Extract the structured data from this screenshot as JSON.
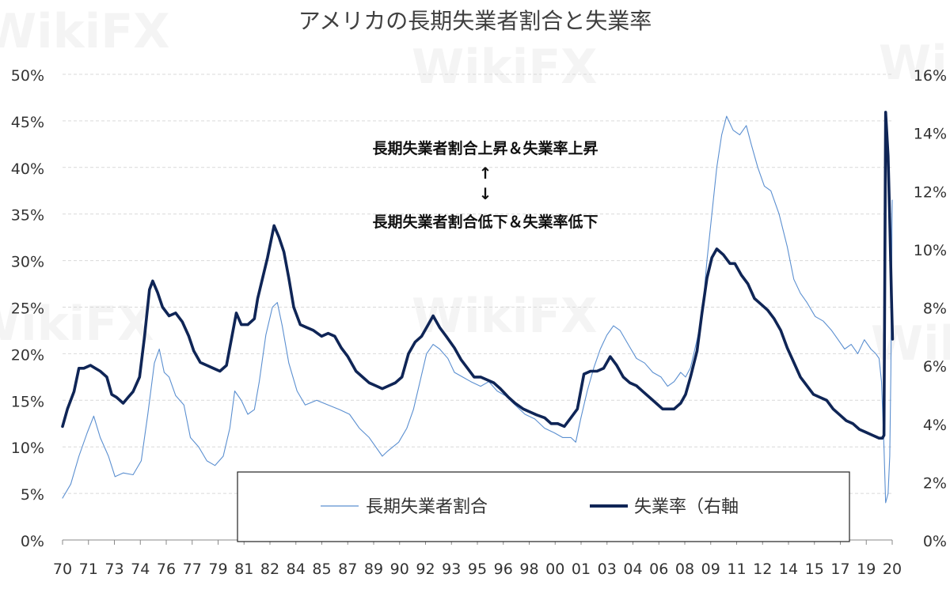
{
  "chart_data": {
    "type": "line",
    "title": "アメリカの長期失業者割合と失業率",
    "annotations": {
      "up": "長期失業者割合上昇＆失業率上昇",
      "arrow_up": "↑",
      "arrow_down": "↓",
      "down": "長期失業者割合低下＆失業率低下"
    },
    "x_tick_labels": [
      "70",
      "71",
      "73",
      "74",
      "76",
      "77",
      "79",
      "81",
      "82",
      "84",
      "85",
      "87",
      "89",
      "90",
      "92",
      "93",
      "95",
      "96",
      "98",
      "00",
      "01",
      "03",
      "04",
      "06",
      "08",
      "09",
      "11",
      "12",
      "14",
      "15",
      "17",
      "19",
      "20"
    ],
    "xlim": [
      1970,
      2020.6
    ],
    "y_left": {
      "ylim": [
        0,
        50
      ],
      "tick_labels": [
        "0%",
        "5%",
        "10%",
        "15%",
        "20%",
        "25%",
        "30%",
        "35%",
        "40%",
        "45%",
        "50%"
      ]
    },
    "y_right": {
      "ylim": [
        0,
        16
      ],
      "tick_labels": [
        "0%",
        "2%",
        "4%",
        "6%",
        "8%",
        "10%",
        "12%",
        "14%",
        "16%"
      ]
    },
    "grid": true,
    "legend_placement": "bottom-center",
    "series": [
      {
        "name": "長期失業者割合",
        "axis": "left",
        "color": "#5b8fd0",
        "style": "thin",
        "points": [
          [
            1970.0,
            4.5
          ],
          [
            1970.5,
            6.0
          ],
          [
            1971.0,
            9.0
          ],
          [
            1971.5,
            11.5
          ],
          [
            1971.9,
            13.3
          ],
          [
            1972.3,
            11.0
          ],
          [
            1972.8,
            9.0
          ],
          [
            1973.2,
            6.8
          ],
          [
            1973.7,
            7.2
          ],
          [
            1974.3,
            7.0
          ],
          [
            1974.8,
            8.5
          ],
          [
            1975.2,
            13.5
          ],
          [
            1975.6,
            19.0
          ],
          [
            1975.9,
            20.5
          ],
          [
            1976.2,
            18.0
          ],
          [
            1976.5,
            17.5
          ],
          [
            1976.9,
            15.5
          ],
          [
            1977.4,
            14.5
          ],
          [
            1977.8,
            11.0
          ],
          [
            1978.3,
            10.0
          ],
          [
            1978.8,
            8.5
          ],
          [
            1979.3,
            8.0
          ],
          [
            1979.8,
            9.0
          ],
          [
            1980.2,
            12.0
          ],
          [
            1980.5,
            16.0
          ],
          [
            1980.9,
            15.0
          ],
          [
            1981.3,
            13.5
          ],
          [
            1981.7,
            14.0
          ],
          [
            1982.0,
            17.0
          ],
          [
            1982.4,
            22.0
          ],
          [
            1982.8,
            25.0
          ],
          [
            1983.1,
            25.5
          ],
          [
            1983.4,
            23.0
          ],
          [
            1983.8,
            19.0
          ],
          [
            1984.3,
            16.0
          ],
          [
            1984.8,
            14.5
          ],
          [
            1985.5,
            15.0
          ],
          [
            1986.2,
            14.5
          ],
          [
            1986.9,
            14.0
          ],
          [
            1987.5,
            13.5
          ],
          [
            1988.1,
            12.0
          ],
          [
            1988.7,
            11.0
          ],
          [
            1989.1,
            10.0
          ],
          [
            1989.5,
            9.0
          ],
          [
            1989.8,
            9.5
          ],
          [
            1990.5,
            10.5
          ],
          [
            1991.0,
            12.0
          ],
          [
            1991.4,
            14.0
          ],
          [
            1991.8,
            17.0
          ],
          [
            1992.2,
            20.0
          ],
          [
            1992.6,
            21.0
          ],
          [
            1993.0,
            20.5
          ],
          [
            1993.5,
            19.5
          ],
          [
            1993.9,
            18.0
          ],
          [
            1994.4,
            17.5
          ],
          [
            1994.9,
            17.0
          ],
          [
            1995.5,
            16.5
          ],
          [
            1996.0,
            17.0
          ],
          [
            1996.5,
            16.0
          ],
          [
            1997.0,
            15.5
          ],
          [
            1997.6,
            14.5
          ],
          [
            1998.2,
            13.5
          ],
          [
            1998.8,
            13.0
          ],
          [
            1999.4,
            12.0
          ],
          [
            2000.0,
            11.5
          ],
          [
            2000.5,
            11.0
          ],
          [
            2001.0,
            11.0
          ],
          [
            2001.3,
            10.5
          ],
          [
            2001.6,
            13.0
          ],
          [
            2002.0,
            16.0
          ],
          [
            2002.4,
            18.5
          ],
          [
            2002.8,
            20.5
          ],
          [
            2003.2,
            22.0
          ],
          [
            2003.6,
            23.0
          ],
          [
            2004.0,
            22.5
          ],
          [
            2004.5,
            21.0
          ],
          [
            2005.0,
            19.5
          ],
          [
            2005.5,
            19.0
          ],
          [
            2006.0,
            18.0
          ],
          [
            2006.5,
            17.5
          ],
          [
            2006.9,
            16.5
          ],
          [
            2007.3,
            17.0
          ],
          [
            2007.7,
            18.0
          ],
          [
            2008.0,
            17.5
          ],
          [
            2008.3,
            18.5
          ],
          [
            2008.7,
            21.5
          ],
          [
            2009.0,
            24.0
          ],
          [
            2009.3,
            30.0
          ],
          [
            2009.6,
            35.0
          ],
          [
            2009.9,
            40.0
          ],
          [
            2010.2,
            43.5
          ],
          [
            2010.5,
            45.5
          ],
          [
            2010.9,
            44.0
          ],
          [
            2011.3,
            43.5
          ],
          [
            2011.7,
            44.5
          ],
          [
            2012.0,
            42.5
          ],
          [
            2012.4,
            40.0
          ],
          [
            2012.8,
            38.0
          ],
          [
            2013.2,
            37.5
          ],
          [
            2013.7,
            35.0
          ],
          [
            2014.2,
            31.5
          ],
          [
            2014.6,
            28.0
          ],
          [
            2015.0,
            26.5
          ],
          [
            2015.4,
            25.5
          ],
          [
            2015.9,
            24.0
          ],
          [
            2016.4,
            23.5
          ],
          [
            2016.9,
            22.5
          ],
          [
            2017.3,
            21.5
          ],
          [
            2017.7,
            20.5
          ],
          [
            2018.1,
            21.0
          ],
          [
            2018.5,
            20.0
          ],
          [
            2018.9,
            21.5
          ],
          [
            2019.3,
            20.5
          ],
          [
            2019.6,
            20.0
          ],
          [
            2019.8,
            19.5
          ],
          [
            2019.95,
            17.0
          ],
          [
            2020.1,
            10.0
          ],
          [
            2020.2,
            4.0
          ],
          [
            2020.35,
            5.0
          ],
          [
            2020.45,
            9.0
          ],
          [
            2020.52,
            18.0
          ],
          [
            2020.6,
            36.5
          ]
        ]
      },
      {
        "name": "失業率（右軸",
        "axis": "right",
        "color": "#0f2556",
        "style": "thick",
        "points": [
          [
            1970.0,
            3.9
          ],
          [
            1970.3,
            4.5
          ],
          [
            1970.7,
            5.1
          ],
          [
            1971.0,
            5.9
          ],
          [
            1971.3,
            5.9
          ],
          [
            1971.7,
            6.0
          ],
          [
            1972.0,
            5.9
          ],
          [
            1972.3,
            5.8
          ],
          [
            1972.7,
            5.6
          ],
          [
            1973.0,
            5.0
          ],
          [
            1973.3,
            4.9
          ],
          [
            1973.7,
            4.7
          ],
          [
            1974.0,
            4.9
          ],
          [
            1974.3,
            5.1
          ],
          [
            1974.7,
            5.6
          ],
          [
            1975.0,
            7.0
          ],
          [
            1975.3,
            8.6
          ],
          [
            1975.5,
            8.9
          ],
          [
            1975.8,
            8.5
          ],
          [
            1976.1,
            8.0
          ],
          [
            1976.5,
            7.7
          ],
          [
            1976.9,
            7.8
          ],
          [
            1977.3,
            7.5
          ],
          [
            1977.7,
            7.0
          ],
          [
            1978.0,
            6.5
          ],
          [
            1978.4,
            6.1
          ],
          [
            1978.8,
            6.0
          ],
          [
            1979.2,
            5.9
          ],
          [
            1979.6,
            5.8
          ],
          [
            1980.0,
            6.0
          ],
          [
            1980.3,
            6.9
          ],
          [
            1980.6,
            7.8
          ],
          [
            1980.9,
            7.4
          ],
          [
            1981.3,
            7.4
          ],
          [
            1981.7,
            7.6
          ],
          [
            1981.9,
            8.3
          ],
          [
            1982.2,
            9.0
          ],
          [
            1982.5,
            9.7
          ],
          [
            1982.9,
            10.8
          ],
          [
            1983.2,
            10.4
          ],
          [
            1983.5,
            9.9
          ],
          [
            1983.8,
            9.0
          ],
          [
            1984.1,
            8.0
          ],
          [
            1984.5,
            7.4
          ],
          [
            1984.9,
            7.3
          ],
          [
            1985.3,
            7.2
          ],
          [
            1985.8,
            7.0
          ],
          [
            1986.2,
            7.1
          ],
          [
            1986.6,
            7.0
          ],
          [
            1987.0,
            6.6
          ],
          [
            1987.4,
            6.3
          ],
          [
            1987.9,
            5.8
          ],
          [
            1988.3,
            5.6
          ],
          [
            1988.7,
            5.4
          ],
          [
            1989.1,
            5.3
          ],
          [
            1989.5,
            5.2
          ],
          [
            1989.9,
            5.3
          ],
          [
            1990.3,
            5.4
          ],
          [
            1990.7,
            5.6
          ],
          [
            1991.1,
            6.4
          ],
          [
            1991.5,
            6.8
          ],
          [
            1991.9,
            7.0
          ],
          [
            1992.3,
            7.4
          ],
          [
            1992.6,
            7.7
          ],
          [
            1993.0,
            7.3
          ],
          [
            1993.4,
            7.0
          ],
          [
            1993.9,
            6.6
          ],
          [
            1994.3,
            6.2
          ],
          [
            1994.7,
            5.9
          ],
          [
            1995.1,
            5.6
          ],
          [
            1995.5,
            5.6
          ],
          [
            1995.9,
            5.5
          ],
          [
            1996.3,
            5.4
          ],
          [
            1996.7,
            5.2
          ],
          [
            1997.2,
            4.9
          ],
          [
            1997.6,
            4.7
          ],
          [
            1998.1,
            4.5
          ],
          [
            1998.5,
            4.4
          ],
          [
            1998.9,
            4.3
          ],
          [
            1999.4,
            4.2
          ],
          [
            1999.8,
            4.0
          ],
          [
            2000.2,
            4.0
          ],
          [
            2000.6,
            3.9
          ],
          [
            2001.0,
            4.2
          ],
          [
            2001.4,
            4.5
          ],
          [
            2001.8,
            5.7
          ],
          [
            2002.2,
            5.8
          ],
          [
            2002.6,
            5.8
          ],
          [
            2003.0,
            5.9
          ],
          [
            2003.4,
            6.3
          ],
          [
            2003.8,
            6.0
          ],
          [
            2004.2,
            5.6
          ],
          [
            2004.6,
            5.4
          ],
          [
            2005.0,
            5.3
          ],
          [
            2005.4,
            5.1
          ],
          [
            2005.8,
            4.9
          ],
          [
            2006.2,
            4.7
          ],
          [
            2006.6,
            4.5
          ],
          [
            2006.9,
            4.5
          ],
          [
            2007.3,
            4.5
          ],
          [
            2007.7,
            4.7
          ],
          [
            2008.0,
            5.0
          ],
          [
            2008.3,
            5.6
          ],
          [
            2008.7,
            6.5
          ],
          [
            2009.0,
            7.8
          ],
          [
            2009.3,
            9.0
          ],
          [
            2009.6,
            9.7
          ],
          [
            2009.9,
            10.0
          ],
          [
            2010.3,
            9.8
          ],
          [
            2010.7,
            9.5
          ],
          [
            2011.0,
            9.5
          ],
          [
            2011.4,
            9.1
          ],
          [
            2011.8,
            8.8
          ],
          [
            2012.2,
            8.3
          ],
          [
            2012.6,
            8.1
          ],
          [
            2013.0,
            7.9
          ],
          [
            2013.4,
            7.6
          ],
          [
            2013.8,
            7.2
          ],
          [
            2014.2,
            6.6
          ],
          [
            2014.6,
            6.1
          ],
          [
            2015.0,
            5.6
          ],
          [
            2015.4,
            5.3
          ],
          [
            2015.8,
            5.0
          ],
          [
            2016.2,
            4.9
          ],
          [
            2016.6,
            4.8
          ],
          [
            2017.0,
            4.5
          ],
          [
            2017.4,
            4.3
          ],
          [
            2017.8,
            4.1
          ],
          [
            2018.2,
            4.0
          ],
          [
            2018.6,
            3.8
          ],
          [
            2019.0,
            3.7
          ],
          [
            2019.4,
            3.6
          ],
          [
            2019.8,
            3.5
          ],
          [
            2020.0,
            3.5
          ],
          [
            2020.1,
            3.6
          ],
          [
            2020.2,
            14.7
          ],
          [
            2020.35,
            13.2
          ],
          [
            2020.45,
            11.0
          ],
          [
            2020.55,
            8.4
          ],
          [
            2020.62,
            6.9
          ]
        ]
      }
    ]
  }
}
